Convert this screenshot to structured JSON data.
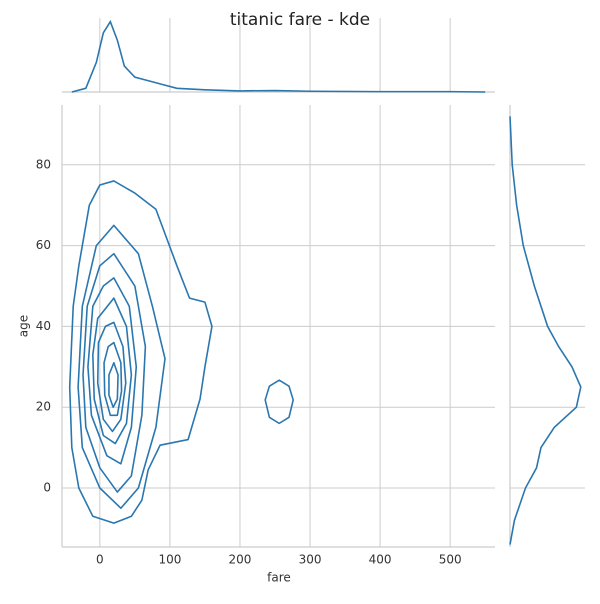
{
  "chart_data": {
    "type": "kde_joint",
    "title": "titanic fare - kde",
    "xlabel": "fare",
    "ylabel": "age",
    "color": "#2a77b0",
    "grid": true,
    "xlim": [
      -54,
      564
    ],
    "ylim": [
      -14.6,
      94.8
    ],
    "xticks": [
      0,
      100,
      200,
      300,
      400,
      500
    ],
    "yticks": [
      0,
      20,
      40,
      60,
      80
    ],
    "contours": [
      {
        "x": [
          20,
          50,
          80,
          110,
          128,
          150,
          160,
          150,
          143,
          126,
          86,
          69,
          60,
          45,
          20,
          -10,
          -30,
          -40,
          -43,
          -38,
          -30,
          -15,
          0
        ],
        "y": [
          76,
          73,
          69,
          55,
          47,
          46,
          40,
          30,
          22,
          12,
          10.6,
          4.5,
          -3,
          -7,
          -8.7,
          -7,
          0,
          10,
          25,
          45,
          55,
          70,
          75
        ]
      },
      {
        "x": [
          20,
          55,
          75,
          93,
          80,
          55,
          30,
          0,
          -25,
          -31,
          -25,
          -5
        ],
        "y": [
          65,
          58,
          45,
          32,
          15,
          0,
          -5,
          0,
          10,
          25,
          45,
          60
        ]
      },
      {
        "x": [
          20,
          50,
          65,
          60,
          45,
          25,
          0,
          -20,
          -24,
          -18,
          0
        ],
        "y": [
          58,
          50,
          35,
          18,
          3,
          -1,
          5,
          15,
          28,
          45,
          55
        ]
      },
      {
        "x": [
          20,
          42,
          52,
          45,
          30,
          10,
          -12,
          -17,
          -10,
          5
        ],
        "y": [
          52,
          45,
          30,
          15,
          6,
          8,
          18,
          30,
          45,
          50
        ]
      },
      {
        "x": [
          20,
          38,
          45,
          38,
          22,
          5,
          -8,
          -10,
          -3
        ],
        "y": [
          47,
          40,
          28,
          16,
          11,
          13,
          22,
          33,
          42
        ]
      },
      {
        "x": [
          20,
          33,
          37,
          30,
          18,
          5,
          -3,
          -2,
          8
        ],
        "y": [
          41,
          35,
          26,
          17,
          14,
          17,
          26,
          36,
          40
        ]
      },
      {
        "x": [
          20,
          30,
          31,
          25,
          15,
          7,
          6,
          12
        ],
        "y": [
          36,
          31,
          24,
          18,
          18,
          23,
          31,
          35
        ]
      },
      {
        "x": [
          20,
          26,
          25,
          19,
          13,
          13
        ],
        "y": [
          31,
          28,
          22,
          20,
          23,
          28
        ]
      },
      {
        "x": [
          256,
          270,
          276,
          270,
          256,
          242,
          236,
          242
        ],
        "y": [
          26.7,
          25.2,
          21.8,
          17.5,
          16,
          17.5,
          21.8,
          25.2
        ]
      }
    ],
    "top_margin": {
      "ylim": [
        0,
        0.02
      ],
      "x": [
        -40,
        -20,
        -5,
        5,
        15,
        25,
        35,
        50,
        70,
        90,
        110,
        150,
        200,
        250,
        300,
        400,
        500,
        550
      ],
      "values": [
        0,
        0.001,
        0.008,
        0.016,
        0.019,
        0.014,
        0.007,
        0.004,
        0.003,
        0.002,
        0.001,
        0.0006,
        0.0003,
        0.0004,
        0.0002,
        0.0001,
        0.0001,
        0
      ]
    },
    "right_margin": {
      "xlim": [
        0,
        0.033
      ],
      "y": [
        -14,
        -8,
        0,
        5,
        10,
        15,
        20,
        25,
        30,
        35,
        40,
        50,
        60,
        70,
        80,
        92
      ],
      "values": [
        0,
        0.002,
        0.007,
        0.012,
        0.014,
        0.02,
        0.03,
        0.032,
        0.028,
        0.022,
        0.017,
        0.011,
        0.006,
        0.003,
        0.001,
        0
      ]
    }
  }
}
